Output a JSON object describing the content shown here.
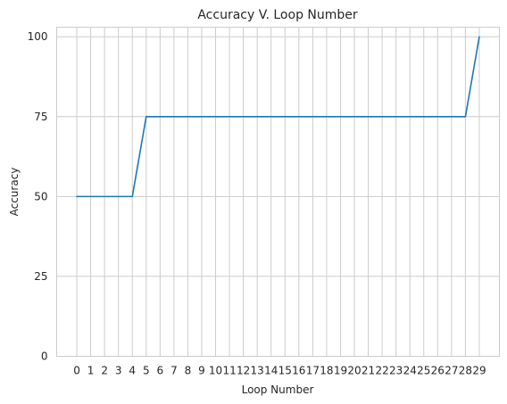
{
  "chart_data": {
    "type": "line",
    "title": "Accuracy V. Loop Number",
    "xlabel": "Loop Number",
    "ylabel": "Accuracy",
    "x": [
      0,
      1,
      2,
      3,
      4,
      5,
      6,
      7,
      8,
      9,
      10,
      11,
      12,
      13,
      14,
      15,
      16,
      17,
      18,
      19,
      20,
      21,
      22,
      23,
      24,
      25,
      26,
      27,
      28,
      29
    ],
    "series": [
      {
        "values": [
          50,
          50,
          50,
          50,
          50,
          75,
          75,
          75,
          75,
          75,
          75,
          75,
          75,
          75,
          75,
          75,
          75,
          75,
          75,
          75,
          75,
          75,
          75,
          75,
          75,
          75,
          75,
          75,
          75,
          100
        ],
        "color": "#1f77b4"
      }
    ],
    "xlim": [
      -1.45,
      30.45
    ],
    "ylim": [
      0,
      103
    ],
    "yticks": [
      0,
      25,
      50,
      75,
      100
    ],
    "grid": true,
    "background": "#ffffff",
    "grid_color": "#cccccc"
  }
}
